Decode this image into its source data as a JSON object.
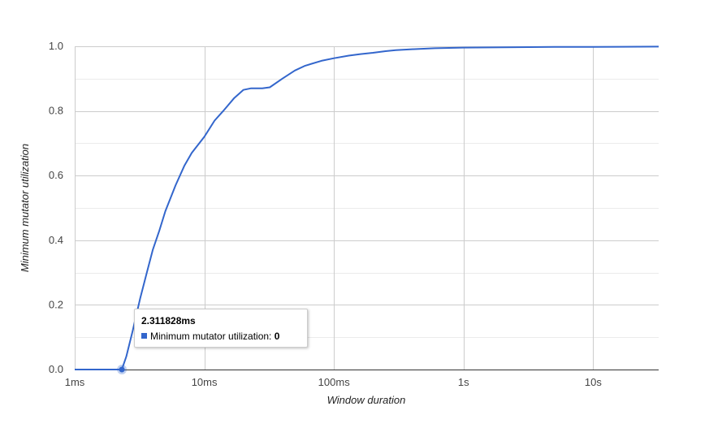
{
  "chart_data": {
    "type": "line",
    "title": "",
    "xlabel": "Window duration",
    "ylabel": "Minimum mutator utilization",
    "x_scale": "log",
    "x_unit": "ms",
    "xlim": [
      1,
      32000
    ],
    "ylim": [
      0,
      1
    ],
    "grid": true,
    "legend": "none",
    "x_ticks": [
      {
        "value": 1,
        "label": "1ms"
      },
      {
        "value": 10,
        "label": "10ms"
      },
      {
        "value": 100,
        "label": "100ms"
      },
      {
        "value": 1000,
        "label": "1s"
      },
      {
        "value": 10000,
        "label": "10s"
      }
    ],
    "y_ticks": [
      {
        "value": 0,
        "label": "0.0"
      },
      {
        "value": 0.2,
        "label": "0.2"
      },
      {
        "value": 0.4,
        "label": "0.4"
      },
      {
        "value": 0.6,
        "label": "0.6"
      },
      {
        "value": 0.8,
        "label": "0.8"
      },
      {
        "value": 1,
        "label": "1.0"
      }
    ],
    "series": [
      {
        "name": "Minimum mutator utilization",
        "color": "#3366cc",
        "x": [
          1,
          2.31,
          2.5,
          2.8,
          3.2,
          3.6,
          4,
          4.5,
          5,
          6,
          7,
          8,
          10,
          12,
          14,
          17,
          20,
          23,
          28,
          32,
          40,
          50,
          60,
          80,
          100,
          130,
          160,
          200,
          250,
          300,
          400,
          600,
          1000,
          2000,
          5000,
          10000,
          32000
        ],
        "y": [
          0,
          0,
          0.04,
          0.12,
          0.22,
          0.3,
          0.37,
          0.43,
          0.49,
          0.57,
          0.63,
          0.67,
          0.72,
          0.77,
          0.8,
          0.84,
          0.865,
          0.87,
          0.87,
          0.873,
          0.9,
          0.925,
          0.94,
          0.955,
          0.963,
          0.971,
          0.976,
          0.98,
          0.985,
          0.988,
          0.991,
          0.994,
          0.996,
          0.997,
          0.998,
          0.998,
          0.999
        ]
      }
    ],
    "tooltip": {
      "title": "2.311828ms",
      "label": "Minimum mutator utilization: ",
      "value": "0",
      "point": {
        "x": 2.311828,
        "y": 0
      }
    }
  }
}
